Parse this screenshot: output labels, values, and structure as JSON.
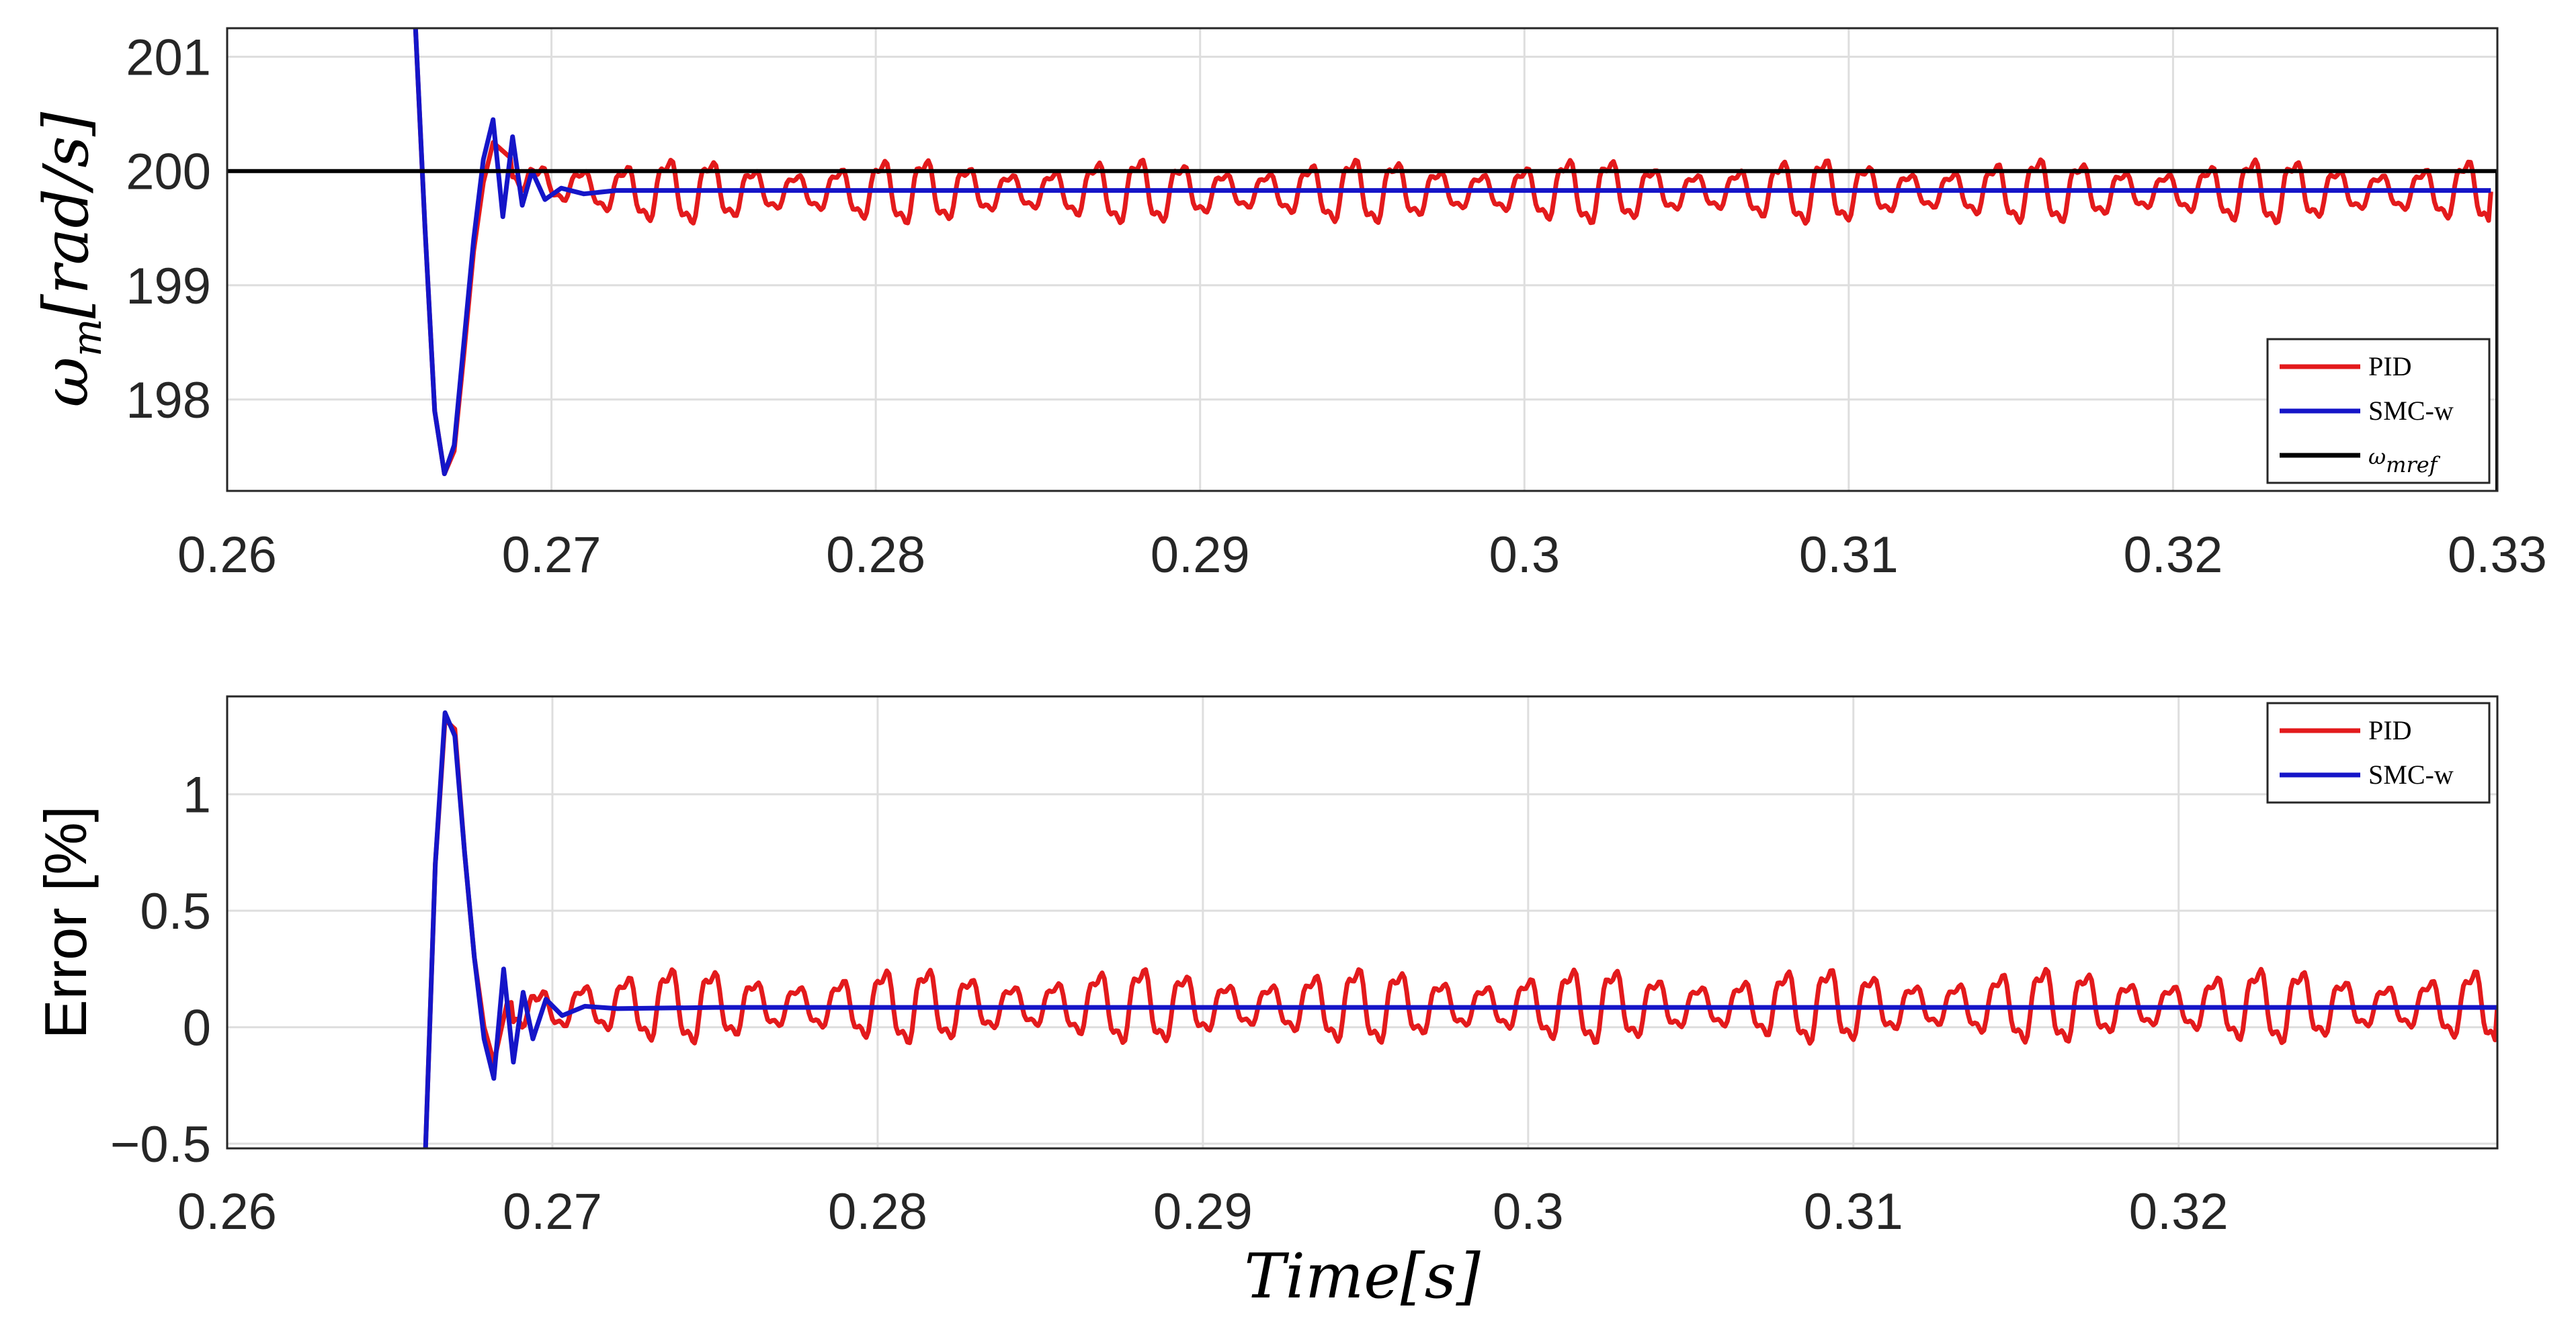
{
  "chart_data": [
    {
      "type": "line",
      "ylabel_symbol": "ω",
      "ylabel_sub": "m",
      "ylabel_unit": "[rad/s]",
      "xlim": [
        0.26,
        0.33
      ],
      "ylim": [
        197.2,
        201.25
      ],
      "xticks": [
        "0.26",
        "0.27",
        "0.28",
        "0.29",
        "0.3",
        "0.31",
        "0.32",
        "0.33"
      ],
      "yticks": [
        "201",
        "200",
        "199",
        "198"
      ],
      "legend_position": "bottom-right",
      "series": [
        {
          "name": "PID",
          "color": "#e31a1c",
          "x": [
            0.2658,
            0.2661,
            0.2664,
            0.2667,
            0.267,
            0.2673,
            0.2676,
            0.2679,
            0.2682,
            0.2686,
            0.269,
            0.2695,
            0.27,
            0.271,
            0.272,
            0.275,
            0.28,
            0.285,
            0.29,
            0.295,
            0.3,
            0.305,
            0.31,
            0.315,
            0.32,
            0.325,
            0.3298
          ],
          "values": [
            201.3,
            199.5,
            197.9,
            197.35,
            197.55,
            198.4,
            199.3,
            199.9,
            200.25,
            200.15,
            200.05,
            199.85,
            199.9,
            199.85,
            199.82,
            199.82,
            199.82,
            199.82,
            199.82,
            199.82,
            199.82,
            199.82,
            199.82,
            199.82,
            199.82,
            199.82,
            199.82
          ],
          "ripple_amplitude": 0.35
        },
        {
          "name": "SMC-w",
          "color": "#1515c8",
          "x": [
            0.2658,
            0.2661,
            0.2664,
            0.2667,
            0.267,
            0.2673,
            0.2676,
            0.2679,
            0.2682,
            0.2685,
            0.2688,
            0.2691,
            0.2694,
            0.2698,
            0.2703,
            0.271,
            0.272,
            0.275,
            0.28,
            0.29,
            0.3,
            0.31,
            0.32,
            0.3298
          ],
          "values": [
            201.3,
            199.5,
            197.9,
            197.35,
            197.6,
            198.5,
            199.4,
            200.1,
            200.45,
            199.6,
            200.3,
            199.7,
            200.0,
            199.75,
            199.85,
            199.8,
            199.83,
            199.83,
            199.83,
            199.83,
            199.83,
            199.83,
            199.83,
            199.83
          ]
        },
        {
          "name": "ω_mref",
          "color": "#000000",
          "x": [
            0.26,
            0.33,
            0.33
          ],
          "values": [
            200,
            200,
            197.2
          ]
        }
      ],
      "legend": [
        {
          "label": "PID"
        },
        {
          "label": "SMC-w"
        },
        {
          "label": "ω",
          "sub": "mref"
        }
      ]
    },
    {
      "type": "line",
      "ylabel": "Error [%]",
      "xlabel_main": "Time",
      "xlabel_unit": "[s]",
      "xlim": [
        0.26,
        0.3298
      ],
      "ylim": [
        -0.52,
        1.42
      ],
      "xticks": [
        "0.26",
        "0.27",
        "0.28",
        "0.29",
        "0.3",
        "0.31",
        "0.32"
      ],
      "yticks": [
        "1",
        "0.5",
        "0",
        "−0.5"
      ],
      "legend_position": "top-right",
      "series": [
        {
          "name": "PID",
          "color": "#e31a1c",
          "x": [
            0.2661,
            0.2664,
            0.2667,
            0.267,
            0.2673,
            0.2676,
            0.2679,
            0.2682,
            0.2686,
            0.269,
            0.2695,
            0.27,
            0.271,
            0.272,
            0.275,
            0.28,
            0.285,
            0.29,
            0.295,
            0.3,
            0.305,
            0.31,
            0.315,
            0.32,
            0.325,
            0.3298
          ],
          "values": [
            -0.52,
            0.7,
            1.32,
            1.28,
            0.75,
            0.3,
            0.0,
            -0.15,
            0.1,
            0.12,
            0.05,
            0.08,
            0.09,
            0.09,
            0.09,
            0.09,
            0.09,
            0.09,
            0.09,
            0.09,
            0.09,
            0.09,
            0.09,
            0.09,
            0.09,
            0.09
          ],
          "ripple_amplitude": 0.2
        },
        {
          "name": "SMC-w",
          "color": "#1515c8",
          "x": [
            0.2661,
            0.2664,
            0.2667,
            0.267,
            0.2673,
            0.2676,
            0.2679,
            0.2682,
            0.2685,
            0.2688,
            0.2691,
            0.2694,
            0.2698,
            0.2703,
            0.271,
            0.272,
            0.275,
            0.28,
            0.29,
            0.3,
            0.31,
            0.32,
            0.3298
          ],
          "values": [
            -0.52,
            0.7,
            1.35,
            1.25,
            0.75,
            0.3,
            -0.05,
            -0.22,
            0.25,
            -0.15,
            0.15,
            -0.05,
            0.12,
            0.05,
            0.09,
            0.08,
            0.085,
            0.085,
            0.085,
            0.085,
            0.085,
            0.085,
            0.085
          ]
        }
      ],
      "legend": [
        {
          "label": "PID"
        },
        {
          "label": "SMC-w"
        }
      ]
    }
  ]
}
